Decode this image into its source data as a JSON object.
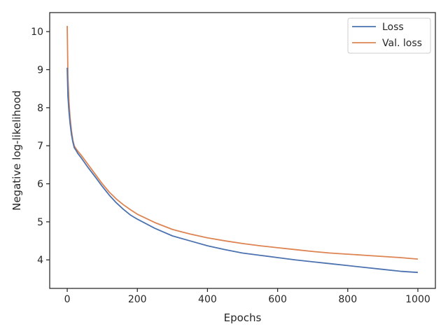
{
  "chart_data": {
    "type": "line",
    "title": "",
    "xlabel": "Epochs",
    "ylabel": "Negative log-likelihood",
    "xlim": [
      -50,
      1050
    ],
    "ylim": [
      3.25,
      10.5
    ],
    "xticks": [
      0,
      200,
      400,
      600,
      800,
      1000
    ],
    "yticks": [
      4,
      5,
      6,
      7,
      8,
      9,
      10
    ],
    "grid": false,
    "legend_position": "top-right",
    "series": [
      {
        "name": "Loss",
        "color": "#4c72b0",
        "x": [
          0,
          2,
          5,
          8,
          12,
          16,
          20,
          25,
          30,
          40,
          60,
          80,
          100,
          120,
          140,
          160,
          180,
          200,
          250,
          300,
          350,
          400,
          450,
          500,
          550,
          600,
          650,
          700,
          750,
          800,
          850,
          900,
          950,
          1000
        ],
        "y": [
          9.05,
          8.3,
          7.9,
          7.6,
          7.3,
          7.1,
          6.95,
          6.88,
          6.8,
          6.68,
          6.42,
          6.18,
          5.93,
          5.7,
          5.5,
          5.33,
          5.18,
          5.07,
          4.83,
          4.63,
          4.5,
          4.37,
          4.27,
          4.18,
          4.12,
          4.06,
          4.0,
          3.95,
          3.9,
          3.85,
          3.8,
          3.75,
          3.7,
          3.67
        ]
      },
      {
        "name": "Val. loss",
        "color": "#dd8452",
        "x": [
          0,
          2,
          5,
          8,
          12,
          16,
          20,
          25,
          30,
          40,
          60,
          80,
          100,
          120,
          140,
          160,
          180,
          200,
          250,
          300,
          350,
          400,
          450,
          500,
          550,
          600,
          650,
          700,
          750,
          800,
          850,
          900,
          950,
          1000
        ],
        "y": [
          10.15,
          8.8,
          8.15,
          7.75,
          7.4,
          7.15,
          7.0,
          6.92,
          6.86,
          6.75,
          6.5,
          6.25,
          6.0,
          5.78,
          5.6,
          5.45,
          5.32,
          5.2,
          4.98,
          4.8,
          4.68,
          4.58,
          4.5,
          4.43,
          4.37,
          4.32,
          4.27,
          4.22,
          4.18,
          4.15,
          4.12,
          4.09,
          4.06,
          4.02
        ]
      }
    ]
  }
}
